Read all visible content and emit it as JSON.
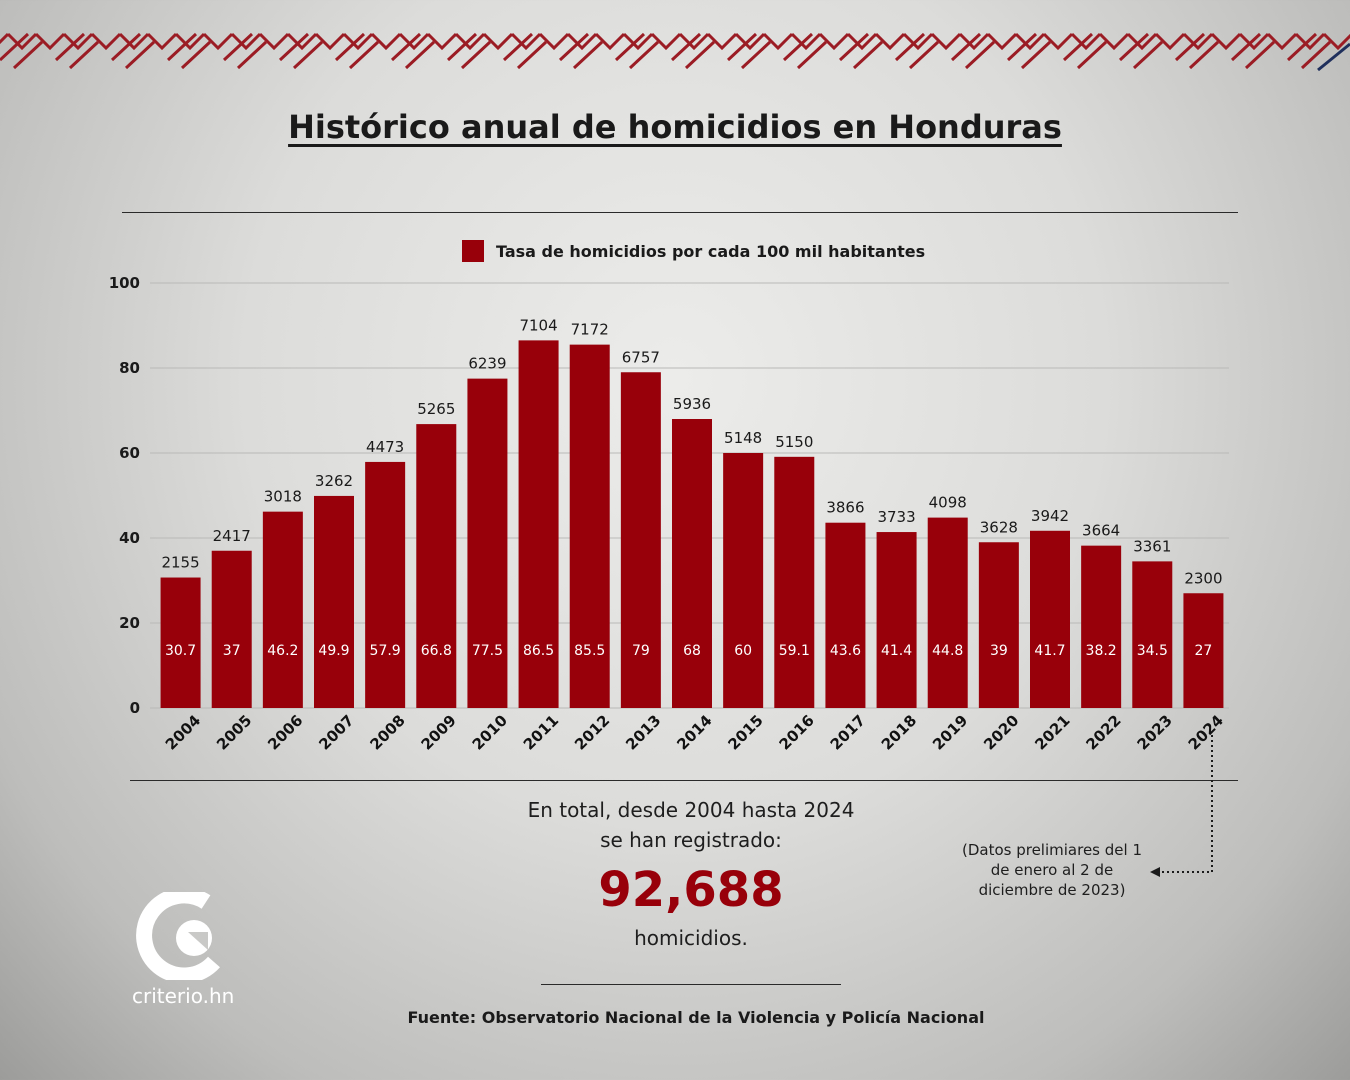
{
  "colors": {
    "bar": "#98000a",
    "accent_red": "#9b1c24",
    "accent_navy": "#1f2f5c"
  },
  "title": "Histórico anual de homicidios en Honduras",
  "chart_data": {
    "type": "bar",
    "categories": [
      "2004",
      "2005",
      "2006",
      "2007",
      "2008",
      "2009",
      "2010",
      "2011",
      "2012",
      "2013",
      "2014",
      "2015",
      "2016",
      "2017",
      "2018",
      "2019",
      "2020",
      "2021",
      "2022",
      "2023",
      "2024"
    ],
    "series": [
      {
        "name": "Tasa de homicidios por cada 100 mil habitantes",
        "values": [
          30.7,
          37,
          46.2,
          49.9,
          57.9,
          66.8,
          77.5,
          86.5,
          85.5,
          79,
          68,
          60,
          59.1,
          43.6,
          41.4,
          44.8,
          39,
          41.7,
          38.2,
          34.5,
          27
        ]
      }
    ],
    "homicides": [
      2155,
      2417,
      3018,
      3262,
      4473,
      5265,
      6239,
      7104,
      7172,
      6757,
      5936,
      5148,
      5150,
      3866,
      3733,
      4098,
      3628,
      3942,
      3664,
      3361,
      2300
    ],
    "ylim": [
      0,
      100
    ],
    "yticks": [
      0,
      20,
      40,
      60,
      80,
      100
    ],
    "grid": true,
    "legend": "top-center"
  },
  "summary": {
    "line1": "En total, desde 2004 hasta 2024",
    "line2": "se han registrado:",
    "total": "92,688",
    "unit": "homicidios."
  },
  "note": "(Datos prelimiares del 1 de enero al 2 de diciembre de 2023)",
  "source": "Fuente: Observatorio Nacional de la Violencia y Policía Nacional",
  "logo_text": "criterio.hn"
}
